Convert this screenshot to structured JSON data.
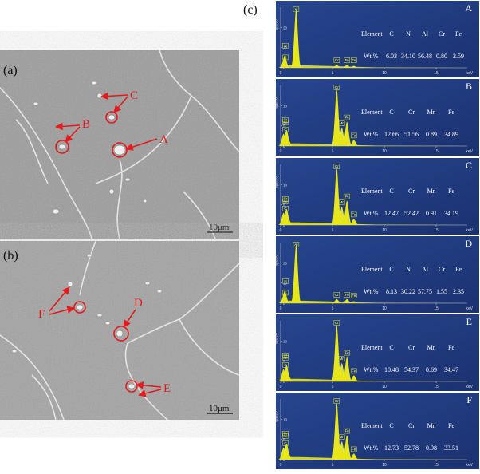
{
  "figure": {
    "panel_c_label": "(c)",
    "sem": [
      {
        "label": "(a)",
        "points": [
          "A",
          "B",
          "C"
        ],
        "scale": "10μm"
      },
      {
        "label": "(b)",
        "points": [
          "D",
          "E",
          "F"
        ],
        "scale": "10μm"
      }
    ],
    "axes": {
      "xlim": [
        0,
        18
      ],
      "xticks": [
        0,
        5,
        10,
        15
      ],
      "x_label": "keV",
      "y_label": "cps/eV"
    },
    "element_header": "Element",
    "wt_header": "Wt.%",
    "spectra": [
      {
        "letter": "A",
        "elements": [
          "C",
          "N",
          "Al",
          "Cr",
          "Fe"
        ],
        "wt": [
          "6.03",
          "34.10",
          "56.48",
          "0.80",
          "2.59"
        ],
        "ylim": [
          0,
          30
        ],
        "yticks": [
          0,
          10,
          20
        ],
        "peaks": [
          {
            "label": "C",
            "x": 0.28,
            "y": 3
          },
          {
            "label": "N",
            "x": 0.39,
            "y": 6
          },
          {
            "label": "Al",
            "x": 1.49,
            "y": 29
          },
          {
            "label": "Cr",
            "x": 5.41,
            "y": 1.5
          },
          {
            "label": "Fe",
            "x": 6.4,
            "y": 1.5
          },
          {
            "label": "Fe",
            "x": 7.06,
            "y": 1
          }
        ]
      },
      {
        "letter": "B",
        "elements": [
          "C",
          "Cr",
          "Mn",
          "Fe"
        ],
        "wt": [
          "12.66",
          "51.56",
          "0.89",
          "34.89"
        ],
        "ylim": [
          0,
          15
        ],
        "yticks": [
          0,
          5,
          10
        ],
        "peaks": [
          {
            "label": "C",
            "x": 0.28,
            "y": 3
          },
          {
            "label": "Cr",
            "x": 0.57,
            "y": 4
          },
          {
            "label": "Fe",
            "x": 0.7,
            "y": 2
          },
          {
            "label": "Cr",
            "x": 5.41,
            "y": 14
          },
          {
            "label": "Mn",
            "x": 5.9,
            "y": 4.5
          },
          {
            "label": "Fe",
            "x": 6.4,
            "y": 6
          },
          {
            "label": "Fe",
            "x": 7.06,
            "y": 1.5
          }
        ]
      },
      {
        "letter": "C",
        "elements": [
          "C",
          "Cr",
          "Mn",
          "Fe"
        ],
        "wt": [
          "12.47",
          "52.42",
          "0.91",
          "34.19"
        ],
        "ylim": [
          0,
          15
        ],
        "yticks": [
          0,
          5,
          10
        ],
        "peaks": [
          {
            "label": "C",
            "x": 0.28,
            "y": 3
          },
          {
            "label": "Cr",
            "x": 0.57,
            "y": 4
          },
          {
            "label": "Fe",
            "x": 0.7,
            "y": 2
          },
          {
            "label": "Cr",
            "x": 5.41,
            "y": 14
          },
          {
            "label": "Mn",
            "x": 5.9,
            "y": 4.5
          },
          {
            "label": "Fe",
            "x": 6.4,
            "y": 6
          },
          {
            "label": "Fe",
            "x": 7.06,
            "y": 1.5
          }
        ]
      },
      {
        "letter": "D",
        "elements": [
          "C",
          "N",
          "Al",
          "Cr",
          "Fe"
        ],
        "wt": [
          "8.13",
          "30.22",
          "57.75",
          "1.55",
          "2.35"
        ],
        "ylim": [
          0,
          30
        ],
        "yticks": [
          0,
          10,
          20
        ],
        "peaks": [
          {
            "label": "C",
            "x": 0.28,
            "y": 3
          },
          {
            "label": "N",
            "x": 0.39,
            "y": 6
          },
          {
            "label": "Al",
            "x": 1.49,
            "y": 29
          },
          {
            "label": "Cr",
            "x": 5.41,
            "y": 2
          },
          {
            "label": "Fe",
            "x": 6.4,
            "y": 2
          },
          {
            "label": "Fe",
            "x": 7.06,
            "y": 1
          }
        ]
      },
      {
        "letter": "E",
        "elements": [
          "C",
          "Cr",
          "Mn",
          "Fe"
        ],
        "wt": [
          "10.48",
          "54.37",
          "0.69",
          "34.47"
        ],
        "ylim": [
          0,
          15
        ],
        "yticks": [
          0,
          5,
          10
        ],
        "peaks": [
          {
            "label": "C",
            "x": 0.28,
            "y": 3
          },
          {
            "label": "Cr",
            "x": 0.57,
            "y": 4
          },
          {
            "label": "Fe",
            "x": 0.7,
            "y": 2
          },
          {
            "label": "Cr",
            "x": 5.41,
            "y": 14
          },
          {
            "label": "Mn",
            "x": 5.9,
            "y": 4.5
          },
          {
            "label": "Fe",
            "x": 6.4,
            "y": 6
          },
          {
            "label": "Fe",
            "x": 7.06,
            "y": 1.5
          }
        ]
      },
      {
        "letter": "F",
        "elements": [
          "C",
          "Cr",
          "Mn",
          "Fe"
        ],
        "wt": [
          "12.73",
          "52.78",
          "0.98",
          "33.51"
        ],
        "ylim": [
          0,
          15
        ],
        "yticks": [
          0,
          5,
          10
        ],
        "peaks": [
          {
            "label": "C",
            "x": 0.28,
            "y": 3
          },
          {
            "label": "Cr",
            "x": 0.57,
            "y": 4
          },
          {
            "label": "Fe",
            "x": 0.7,
            "y": 2
          },
          {
            "label": "Cr",
            "x": 5.41,
            "y": 14
          },
          {
            "label": "Mn",
            "x": 5.9,
            "y": 4.5
          },
          {
            "label": "Fe",
            "x": 6.4,
            "y": 6
          },
          {
            "label": "Fe",
            "x": 7.06,
            "y": 1.5
          }
        ]
      }
    ]
  }
}
